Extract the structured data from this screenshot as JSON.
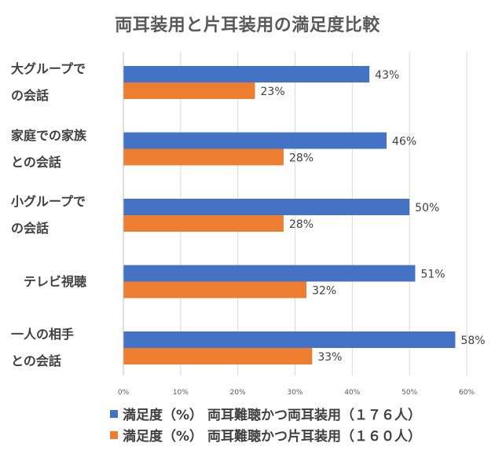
{
  "chart_data": {
    "type": "bar",
    "orientation": "horizontal",
    "title": "両耳装用と片耳装用の満足度比較",
    "categories": [
      [
        "大グループで",
        "の会話"
      ],
      [
        "家庭での家族",
        "との会話"
      ],
      [
        "小グループで",
        "の会話"
      ],
      [
        "テレビ視聴"
      ],
      [
        "一人の相手",
        "との会話"
      ]
    ],
    "series": [
      {
        "name": "満足度（%） 両耳難聴かつ両耳装用（１７６人）",
        "color": "#4472C4",
        "values": [
          43,
          46,
          50,
          51,
          58
        ],
        "labels": [
          "43%",
          "46%",
          "50%",
          "51%",
          "58%"
        ]
      },
      {
        "name": "満足度（%） 両耳難聴かつ片耳装用（１６０人）",
        "color": "#ED7D31",
        "values": [
          23,
          28,
          28,
          32,
          33
        ],
        "labels": [
          "23%",
          "28%",
          "28%",
          "32%",
          "33%"
        ]
      }
    ],
    "xlim": [
      0,
      60
    ],
    "xticks": [
      0,
      10,
      20,
      30,
      40,
      50,
      60
    ],
    "xtick_labels": [
      "0%",
      "10%",
      "20%",
      "30%",
      "40%",
      "50%",
      "60%"
    ],
    "grid": true,
    "legend_position": "bottom"
  }
}
